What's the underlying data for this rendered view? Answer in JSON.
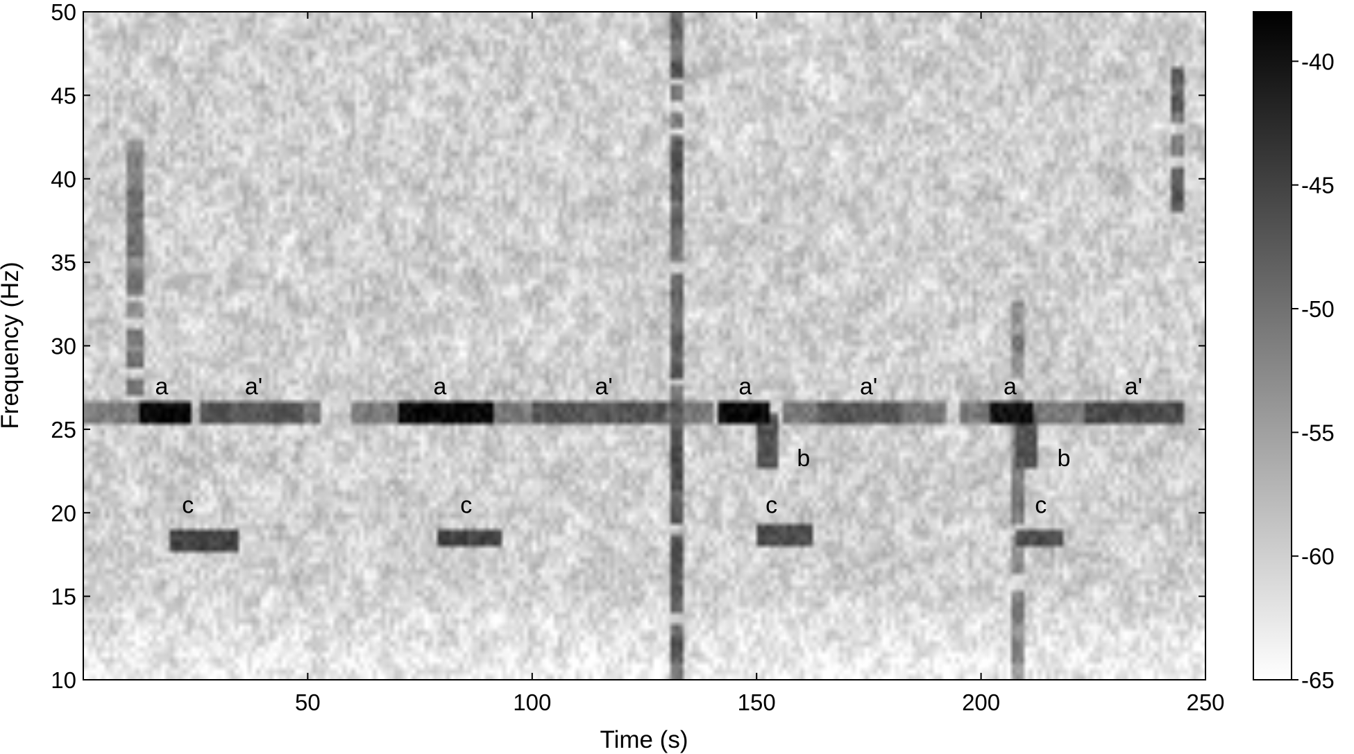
{
  "chart_data": {
    "type": "heatmap",
    "subtype": "spectrogram",
    "colormap": "grayscale-reversed",
    "xlabel": "Time (s)",
    "ylabel": "Frequency (Hz)",
    "xlim": [
      0,
      250
    ],
    "ylim": [
      10,
      50
    ],
    "xticks": [
      50,
      100,
      150,
      200,
      250
    ],
    "yticks": [
      10,
      15,
      20,
      25,
      30,
      35,
      40,
      45,
      50
    ],
    "colorbar": {
      "range": [
        -65,
        -38
      ],
      "ticks": [
        -40,
        -45,
        -50,
        -55,
        -60,
        -65
      ],
      "low_color": "#ffffff",
      "high_color": "#000000"
    },
    "noise_level_db": -60,
    "tonal_line": {
      "freq_hz": 25.8,
      "t_start": 0,
      "t_end": 250,
      "level_db": -51
    },
    "broadband_events": [
      {
        "time_s": 11,
        "f_min": 27,
        "f_max": 43,
        "level_db": -52
      },
      {
        "time_s": 132,
        "f_min": 10,
        "f_max": 50,
        "level_db": -49
      },
      {
        "time_s": 208,
        "f_min": 10,
        "f_max": 33,
        "level_db": -53
      },
      {
        "time_s": 243,
        "f_min": 38,
        "f_max": 47,
        "level_db": -50
      }
    ],
    "call_units": [
      {
        "label": "a",
        "t_start": 13,
        "t_end": 23,
        "freq_hz": 25.8,
        "level_db": -39
      },
      {
        "label": "a'",
        "t_start": 26,
        "t_end": 48,
        "freq_hz": 25.8,
        "level_db": -47
      },
      {
        "label": "c",
        "t_start": 20,
        "t_end": 33,
        "freq_hz": 18.2,
        "level_db": -45
      },
      {
        "label": "a",
        "t_start": 71,
        "t_end": 90,
        "freq_hz": 25.8,
        "level_db": -39
      },
      {
        "label": "a'",
        "t_start": 100,
        "t_end": 128,
        "freq_hz": 25.8,
        "level_db": -47
      },
      {
        "label": "c",
        "t_start": 79,
        "t_end": 92,
        "freq_hz": 18.3,
        "level_db": -45
      },
      {
        "label": "a",
        "t_start": 142,
        "t_end": 151,
        "freq_hz": 25.8,
        "level_db": -39
      },
      {
        "label": "b",
        "t_start": 150,
        "t_end": 153,
        "freq_start_hz": 25.5,
        "freq_end_hz": 22.8,
        "level_db": -47
      },
      {
        "label": "a'",
        "t_start": 164,
        "t_end": 181,
        "freq_hz": 25.8,
        "level_db": -47
      },
      {
        "label": "c",
        "t_start": 150,
        "t_end": 161,
        "freq_hz": 18.4,
        "level_db": -46
      },
      {
        "label": "a",
        "t_start": 202,
        "t_end": 210,
        "freq_hz": 25.8,
        "level_db": -40
      },
      {
        "label": "b",
        "t_start": 208,
        "t_end": 211,
        "freq_start_hz": 25.5,
        "freq_end_hz": 22.8,
        "level_db": -47
      },
      {
        "label": "a'",
        "t_start": 224,
        "t_end": 244,
        "freq_hz": 25.8,
        "level_db": -46
      },
      {
        "label": "c",
        "t_start": 208,
        "t_end": 217,
        "freq_hz": 18.3,
        "level_db": -46
      }
    ],
    "annotations": [
      {
        "text": "a",
        "x": 16,
        "y": 27.1
      },
      {
        "text": "a'",
        "x": 36,
        "y": 27.1
      },
      {
        "text": "a",
        "x": 78,
        "y": 27.1
      },
      {
        "text": "a'",
        "x": 114,
        "y": 27.1
      },
      {
        "text": "a",
        "x": 146,
        "y": 27.1
      },
      {
        "text": "a'",
        "x": 173,
        "y": 27.1
      },
      {
        "text": "a",
        "x": 205,
        "y": 27.1
      },
      {
        "text": "a'",
        "x": 232,
        "y": 27.1
      },
      {
        "text": "b",
        "x": 159,
        "y": 22.8
      },
      {
        "text": "b",
        "x": 217,
        "y": 22.8
      },
      {
        "text": "c",
        "x": 22,
        "y": 20
      },
      {
        "text": "c",
        "x": 84,
        "y": 20
      },
      {
        "text": "c",
        "x": 152,
        "y": 20
      },
      {
        "text": "c",
        "x": 212,
        "y": 20
      }
    ]
  }
}
